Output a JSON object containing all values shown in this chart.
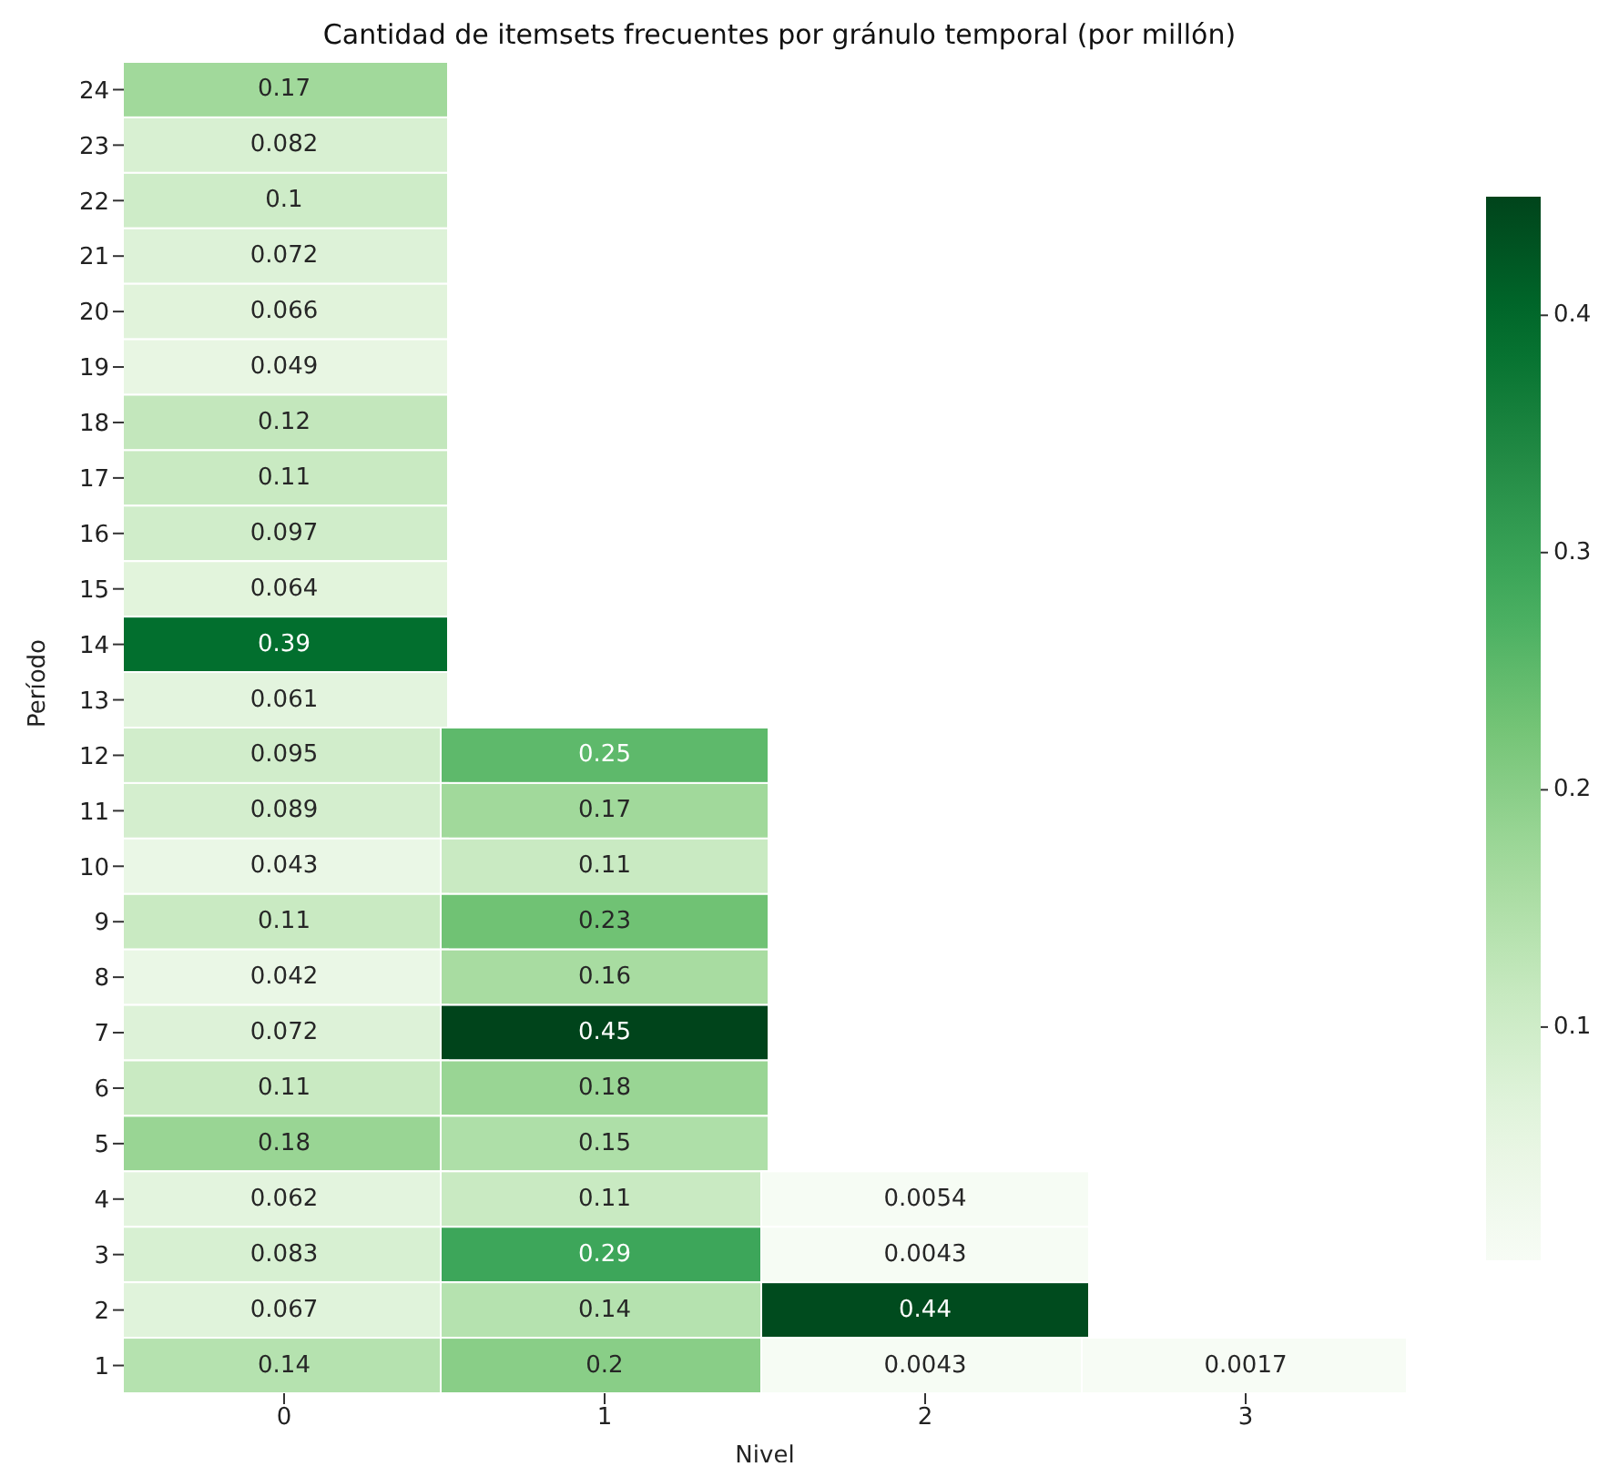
{
  "chart_data": {
    "type": "heatmap",
    "title": "Cantidad de itemsets frecuentes por gránulo temporal (por millón)",
    "xlabel": "Nivel",
    "ylabel": "Período",
    "categories": [
      "0",
      "1",
      "2",
      "3"
    ],
    "y_categories": [
      "24",
      "23",
      "22",
      "21",
      "20",
      "19",
      "18",
      "17",
      "16",
      "15",
      "14",
      "13",
      "12",
      "11",
      "10",
      "9",
      "8",
      "7",
      "6",
      "5",
      "4",
      "3",
      "2",
      "1"
    ],
    "cells": [
      [
        0.17,
        null,
        null,
        null
      ],
      [
        0.082,
        null,
        null,
        null
      ],
      [
        0.1,
        null,
        null,
        null
      ],
      [
        0.072,
        null,
        null,
        null
      ],
      [
        0.066,
        null,
        null,
        null
      ],
      [
        0.049,
        null,
        null,
        null
      ],
      [
        0.12,
        null,
        null,
        null
      ],
      [
        0.11,
        null,
        null,
        null
      ],
      [
        0.097,
        null,
        null,
        null
      ],
      [
        0.064,
        null,
        null,
        null
      ],
      [
        0.39,
        null,
        null,
        null
      ],
      [
        0.061,
        null,
        null,
        null
      ],
      [
        0.095,
        0.25,
        null,
        null
      ],
      [
        0.089,
        0.17,
        null,
        null
      ],
      [
        0.043,
        0.11,
        null,
        null
      ],
      [
        0.11,
        0.23,
        null,
        null
      ],
      [
        0.042,
        0.16,
        null,
        null
      ],
      [
        0.072,
        0.45,
        null,
        null
      ],
      [
        0.11,
        0.18,
        null,
        null
      ],
      [
        0.18,
        0.15,
        null,
        null
      ],
      [
        0.062,
        0.11,
        0.0054,
        null
      ],
      [
        0.083,
        0.29,
        0.0043,
        null
      ],
      [
        0.067,
        0.14,
        0.44,
        null
      ],
      [
        0.14,
        0.2,
        0.0043,
        0.0017
      ]
    ],
    "clim": [
      0.0017,
      0.45
    ],
    "cticks": [
      0.1,
      0.2,
      0.3,
      0.4
    ],
    "data_labels": true
  }
}
